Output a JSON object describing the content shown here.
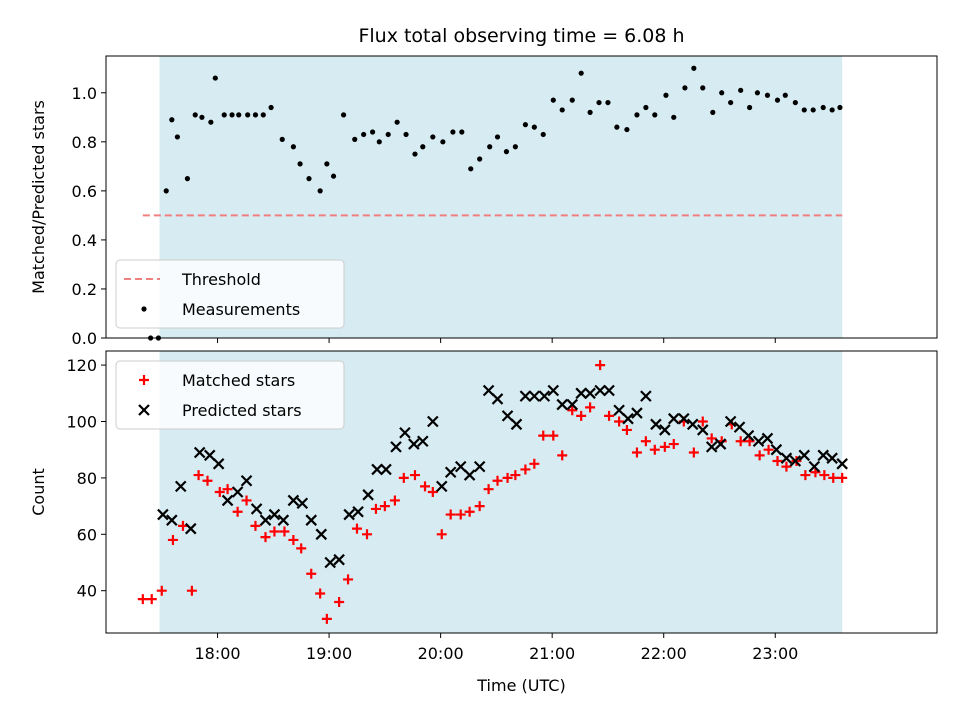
{
  "chart_data": {
    "title": "Flux total observing time = 6.08 h",
    "xlabel": "Time (UTC)",
    "x_unit": "hours (UTC)",
    "xlim": [
      17.0,
      24.45
    ],
    "xticks": [
      18,
      19,
      20,
      21,
      22,
      23
    ],
    "xtick_labels": [
      "18:00",
      "19:00",
      "20:00",
      "21:00",
      "22:00",
      "23:00"
    ],
    "shaded_interval": [
      17.48,
      23.6
    ],
    "shade_color": "#add8e6",
    "panels": [
      {
        "type": "scatter",
        "ylabel": "Matched/Predicted stars",
        "ylim": [
          0.0,
          1.15
        ],
        "yticks": [
          0.0,
          0.2,
          0.4,
          0.6,
          0.8,
          1.0
        ],
        "ytick_labels": [
          "0.0",
          "0.2",
          "0.4",
          "0.6",
          "0.8",
          "1.0"
        ],
        "threshold": {
          "name": "Threshold",
          "value": 0.5,
          "x_range": [
            17.33,
            23.6
          ],
          "color": "#f08080"
        },
        "legend_position": "lower-left",
        "series": [
          {
            "name": "Measurements",
            "marker": "dot",
            "color": "#000000",
            "x": [
              17.4,
              17.47,
              17.54,
              17.59,
              17.64,
              17.73,
              17.8,
              17.86,
              17.94,
              17.98,
              18.06,
              18.13,
              18.19,
              18.27,
              18.34,
              18.41,
              18.48,
              18.58,
              18.68,
              18.74,
              18.82,
              18.92,
              18.98,
              19.04,
              19.13,
              19.23,
              19.31,
              19.39,
              19.45,
              19.53,
              19.61,
              19.69,
              19.77,
              19.84,
              19.93,
              20.02,
              20.11,
              20.19,
              20.27,
              20.35,
              20.44,
              20.51,
              20.59,
              20.67,
              20.76,
              20.84,
              20.92,
              21.01,
              21.09,
              21.18,
              21.26,
              21.34,
              21.42,
              21.5,
              21.58,
              21.67,
              21.76,
              21.84,
              21.92,
              22.02,
              22.09,
              22.19,
              22.27,
              22.35,
              22.44,
              22.52,
              22.6,
              22.69,
              22.77,
              22.84,
              22.93,
              23.02,
              23.09,
              23.18,
              23.26,
              23.34,
              23.43,
              23.51,
              23.58
            ],
            "y": [
              0.0,
              0.0,
              0.6,
              0.89,
              0.82,
              0.65,
              0.91,
              0.9,
              0.88,
              1.06,
              0.91,
              0.91,
              0.91,
              0.91,
              0.91,
              0.91,
              0.94,
              0.81,
              0.78,
              0.71,
              0.65,
              0.6,
              0.71,
              0.66,
              0.91,
              0.81,
              0.83,
              0.84,
              0.8,
              0.83,
              0.88,
              0.83,
              0.75,
              0.78,
              0.82,
              0.8,
              0.84,
              0.84,
              0.69,
              0.73,
              0.78,
              0.82,
              0.76,
              0.78,
              0.87,
              0.86,
              0.83,
              0.97,
              0.93,
              0.97,
              1.08,
              0.92,
              0.96,
              0.96,
              0.86,
              0.85,
              0.91,
              0.94,
              0.91,
              0.99,
              0.9,
              1.02,
              1.1,
              1.02,
              0.92,
              1.0,
              0.96,
              1.01,
              0.94,
              1.0,
              0.99,
              0.97,
              0.99,
              0.96,
              0.93,
              0.93,
              0.94,
              0.93,
              0.94
            ]
          }
        ]
      },
      {
        "type": "scatter",
        "ylabel": "Count",
        "ylim": [
          25,
          125
        ],
        "yticks": [
          40,
          60,
          80,
          100,
          120
        ],
        "ytick_labels": [
          "40",
          "60",
          "80",
          "100",
          "120"
        ],
        "legend_position": "upper-left",
        "series": [
          {
            "name": "Matched stars",
            "marker": "plus",
            "color": "#ff0000",
            "x": [
              17.33,
              17.41,
              17.5,
              17.6,
              17.69,
              17.77,
              17.83,
              17.91,
              18.02,
              18.09,
              18.18,
              18.26,
              18.34,
              18.43,
              18.51,
              18.6,
              18.68,
              18.75,
              18.84,
              18.92,
              18.98,
              19.09,
              19.17,
              19.25,
              19.34,
              19.42,
              19.5,
              19.59,
              19.67,
              19.77,
              19.86,
              19.93,
              20.01,
              20.09,
              20.18,
              20.26,
              20.35,
              20.43,
              20.51,
              20.6,
              20.67,
              20.76,
              20.84,
              20.92,
              21.01,
              21.09,
              21.18,
              21.26,
              21.34,
              21.43,
              21.51,
              21.6,
              21.67,
              21.76,
              21.84,
              21.92,
              22.01,
              22.09,
              22.18,
              22.27,
              22.35,
              22.43,
              22.52,
              22.61,
              22.69,
              22.77,
              22.86,
              22.94,
              23.02,
              23.1,
              23.19,
              23.27,
              23.36,
              23.44,
              23.52,
              23.6
            ],
            "y": [
              37,
              37,
              40,
              58,
              63,
              40,
              81,
              79,
              75,
              76,
              68,
              72,
              63,
              59,
              61,
              61,
              58,
              55,
              46,
              39,
              30,
              36,
              44,
              62,
              60,
              69,
              70,
              72,
              80,
              81,
              77,
              75,
              60,
              67,
              67,
              68,
              70,
              76,
              79,
              80,
              81,
              83,
              85,
              95,
              95,
              88,
              104,
              102,
              105,
              120,
              102,
              100,
              97,
              89,
              93,
              90,
              91,
              92,
              100,
              89,
              100,
              94,
              93,
              99,
              93,
              93,
              88,
              90,
              86,
              84,
              86,
              81,
              82,
              81,
              80,
              80
            ]
          },
          {
            "name": "Predicted stars",
            "marker": "x",
            "color": "#000000",
            "x": [
              17.51,
              17.59,
              17.67,
              17.76,
              17.84,
              17.93,
              18.01,
              18.09,
              18.18,
              18.26,
              18.35,
              18.43,
              18.51,
              18.59,
              18.68,
              18.76,
              18.84,
              18.93,
              19.01,
              19.09,
              19.18,
              19.26,
              19.35,
              19.43,
              19.51,
              19.6,
              19.68,
              19.76,
              19.84,
              19.93,
              20.01,
              20.09,
              20.18,
              20.26,
              20.35,
              20.43,
              20.51,
              20.6,
              20.68,
              20.76,
              20.84,
              20.93,
              21.01,
              21.09,
              21.18,
              21.26,
              21.34,
              21.43,
              21.51,
              21.6,
              21.68,
              21.76,
              21.84,
              21.93,
              22.01,
              22.09,
              22.18,
              22.26,
              22.35,
              22.43,
              22.51,
              22.6,
              22.68,
              22.76,
              22.85,
              22.93,
              23.01,
              23.1,
              23.18,
              23.26,
              23.35,
              23.43,
              23.51,
              23.6
            ],
            "y": [
              67,
              65,
              77,
              62,
              89,
              88,
              85,
              72,
              75,
              79,
              69,
              65,
              67,
              65,
              72,
              71,
              65,
              60,
              50,
              51,
              67,
              68,
              74,
              83,
              83,
              91,
              96,
              92,
              93,
              100,
              77,
              82,
              84,
              81,
              84,
              111,
              108,
              102,
              99,
              109,
              109,
              109,
              111,
              106,
              106,
              110,
              110,
              111,
              111,
              104,
              101,
              103,
              109,
              99,
              97,
              101,
              101,
              99,
              97,
              91,
              92,
              100,
              98,
              95,
              93,
              94,
              90,
              87,
              86,
              88,
              84,
              88,
              87,
              85
            ]
          }
        ]
      }
    ]
  }
}
